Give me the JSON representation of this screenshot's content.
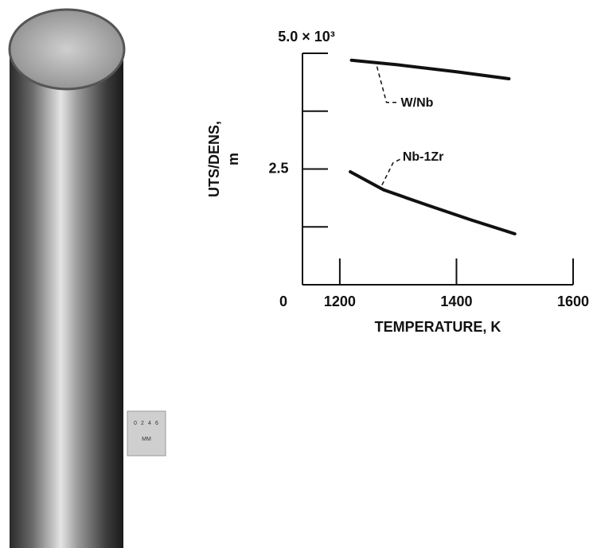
{
  "chart_data": {
    "type": "line",
    "xlabel": "TEMPERATURE, K",
    "ylabel": [
      "UTS/DENS,",
      "m"
    ],
    "xlim": [
      1136,
      1600
    ],
    "xticks": [
      1200,
      1400,
      1600
    ],
    "ylim": [
      0,
      5
    ],
    "yticks": [
      0,
      2.5,
      {
        "value": 5,
        "label": "5.0 × 10³"
      }
    ],
    "yminorticks": [
      1.25,
      3.75
    ],
    "series": [
      {
        "name": "W/Nb",
        "color": "#111111",
        "x": [
          1220,
          1300,
          1400,
          1490
        ],
        "values": [
          4.85,
          4.75,
          4.6,
          4.45
        ]
      },
      {
        "name": "Nb-1Zr",
        "color": "#111111",
        "x": [
          1218,
          1275,
          1350,
          1425,
          1500
        ],
        "values": [
          2.44,
          2.05,
          1.72,
          1.4,
          1.1
        ]
      }
    ]
  },
  "photo": {
    "scale_labels": [
      "0",
      "2",
      "4",
      "6"
    ],
    "unit": "MM"
  }
}
